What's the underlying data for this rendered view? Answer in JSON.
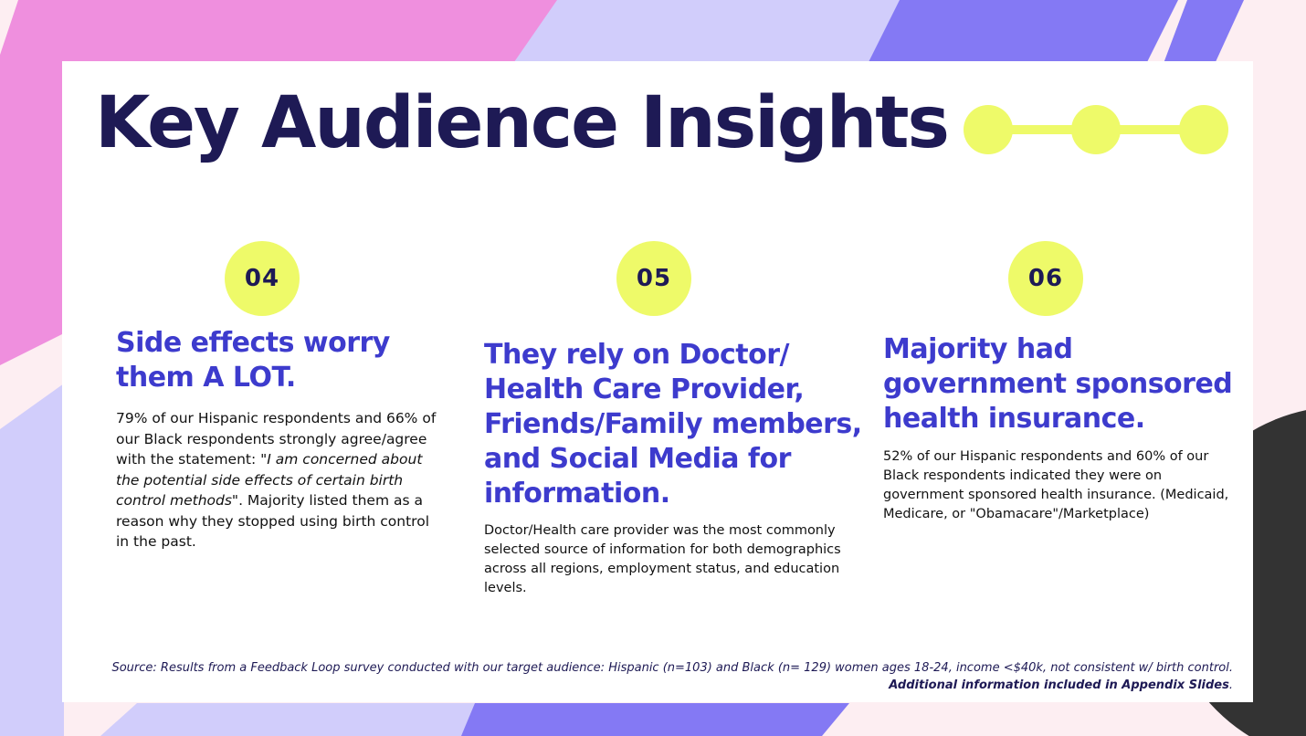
{
  "title": "Key Audience Insights",
  "colors": {
    "background": "#fdeef2",
    "pink": "#ef8fde",
    "lavender": "#d1cdfb",
    "indigo": "#8479f4",
    "dark": "#333333",
    "yellow": "#eefa69",
    "heading": "#3d3bcd",
    "title": "#1e1a55"
  },
  "insights": [
    {
      "number": "04",
      "heading": "Side effects worry them A LOT.",
      "body_before": "79% of our Hispanic respondents and 66% of our Black respondents strongly agree/agree with the statement: ",
      "body_quote": "\"I am concerned about the potential side effects of certain birth control methods\"",
      "body_after": ". Majority listed them as a reason why they stopped using birth control in the past."
    },
    {
      "number": "05",
      "heading": "They rely on Doctor/ Health Care Provider, Friends/Family members, and Social Media for information.",
      "body": "Doctor/Health care provider was the most commonly selected source of information for both demographics across all regions, employment status, and education levels."
    },
    {
      "number": "06",
      "heading": "Majority had government sponsored health insurance.",
      "body": "52% of our Hispanic respondents and 60% of our Black respondents indicated they were on government sponsored health insurance. (Medicaid, Medicare, or \"Obamacare\"/Marketplace)"
    }
  ],
  "source": {
    "line1": "Source: Results from a Feedback Loop survey conducted with our target audience:  Hispanic (n=103) and Black (n= 129) women ages 18-24, income <$40k, not consistent w/ birth control.",
    "line2": "Additional information included in Appendix Slides",
    "line2_end": "."
  }
}
